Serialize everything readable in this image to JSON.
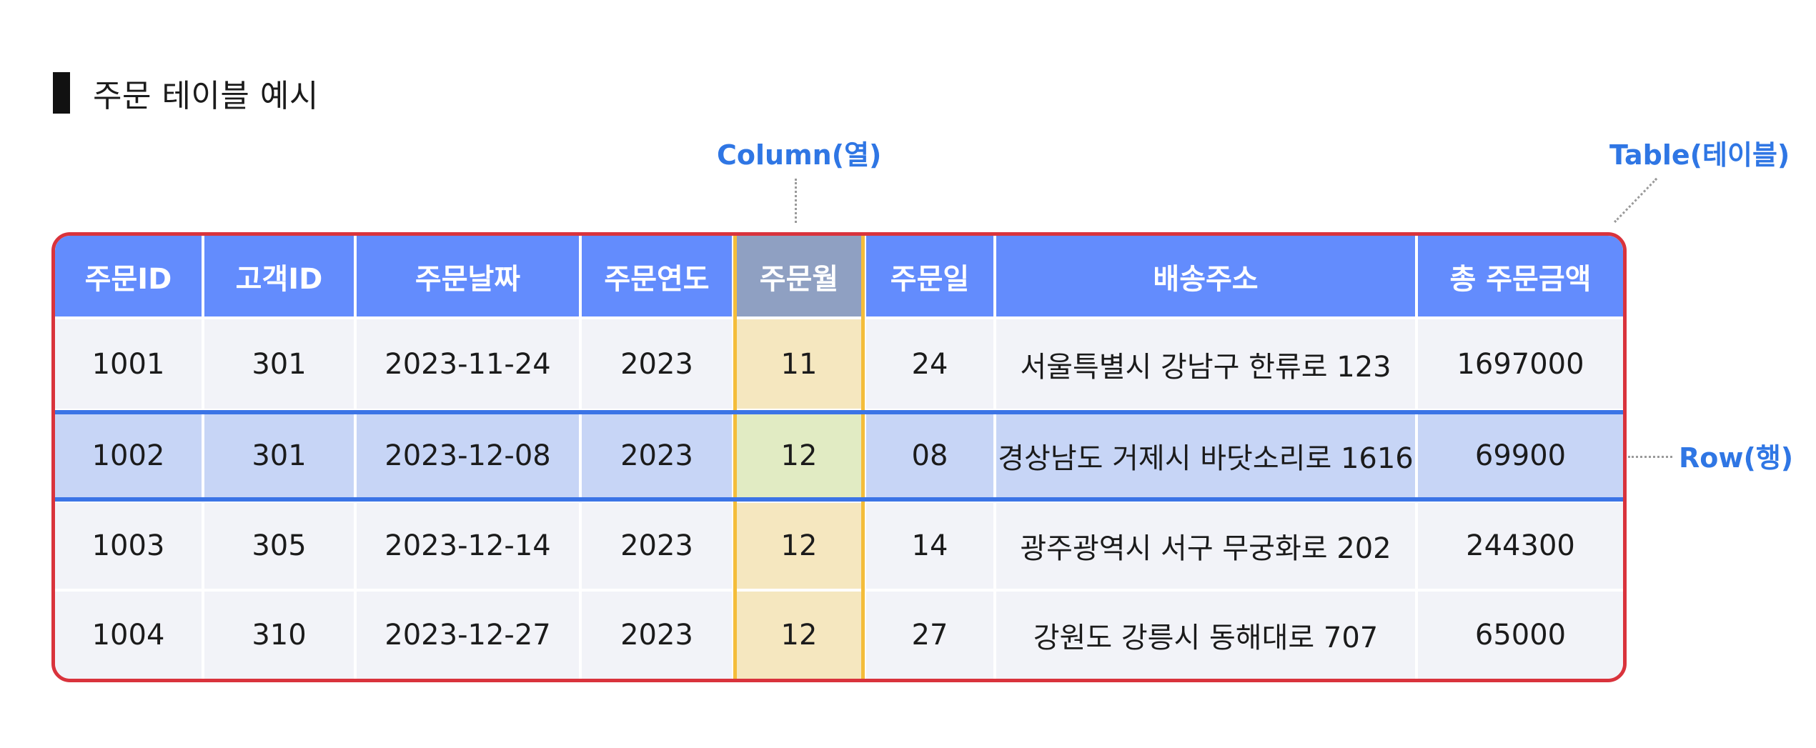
{
  "title": "주문 테이블 예시",
  "annotations": {
    "column": "Column(열)",
    "table": "Table(테이블)",
    "row": "Row(행)"
  },
  "table": {
    "headers": [
      "주문ID",
      "고객ID",
      "주문날짜",
      "주문연도",
      "주문월",
      "주문일",
      "배송주소",
      "총 주문금액"
    ],
    "rows": [
      [
        "1001",
        "301",
        "2023-11-24",
        "2023",
        "11",
        "24",
        "서울특별시 강남구 한류로 123",
        "1697000"
      ],
      [
        "1002",
        "301",
        "2023-12-08",
        "2023",
        "12",
        "08",
        "경상남도 거제시 바닷소리로 1616",
        "69900"
      ],
      [
        "1003",
        "305",
        "2023-12-14",
        "2023",
        "12",
        "14",
        "광주광역시 서구 무궁화로 202",
        "244300"
      ],
      [
        "1004",
        "310",
        "2023-12-27",
        "2023",
        "12",
        "27",
        "강원도 강릉시 동해대로 707",
        "65000"
      ]
    ],
    "highlighted_column_index": 4,
    "highlighted_row_index": 1
  },
  "colors": {
    "header": "#638cfd",
    "header_highlight": "#8fa0c2",
    "body": "#f2f3f8",
    "row_highlight": "#c7d5f6",
    "column_highlight": "#f5e7bf",
    "intersection": "#e1ebc3",
    "table_border": "#d9333c",
    "column_border": "#f4bd3a",
    "row_border": "#3b74e6",
    "annotation": "#2f76e4"
  }
}
